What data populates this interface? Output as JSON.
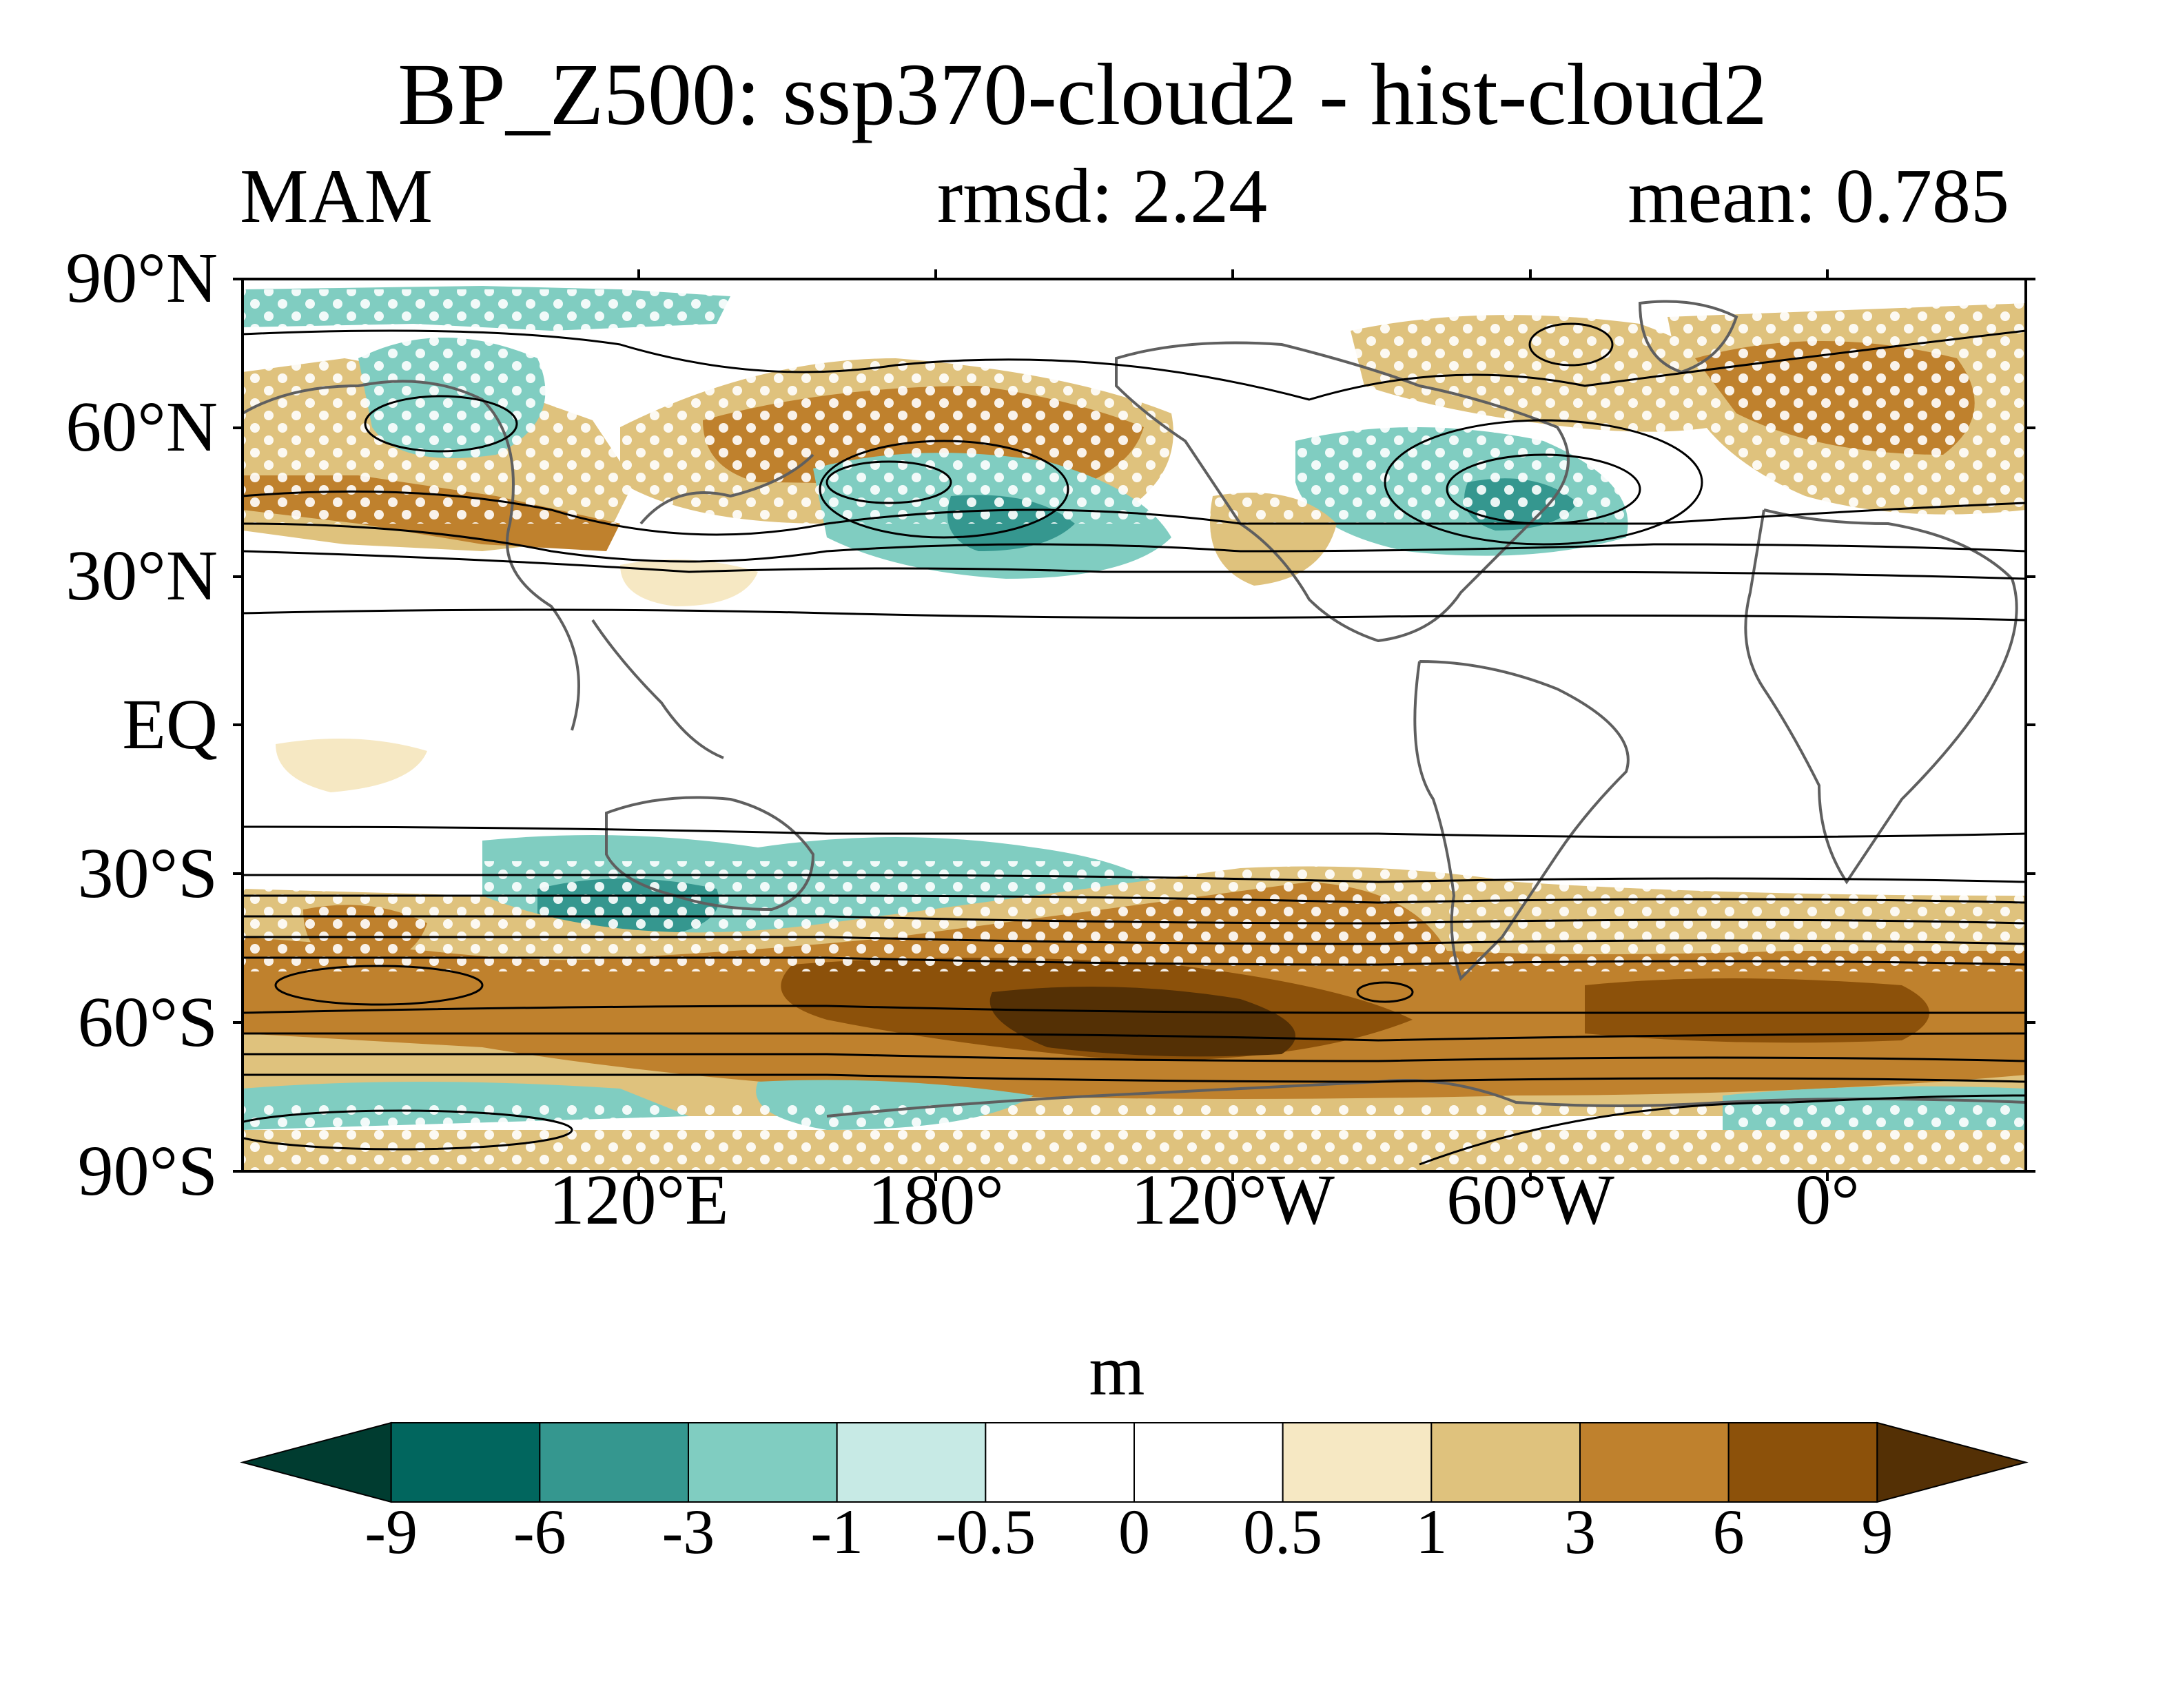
{
  "title": "BP_Z500: ssp370-cloud2 - hist-cloud2",
  "left_label": "MAM",
  "center_label": "rmsd: 2.24",
  "right_label": "mean: 0.785",
  "lat_labels": [
    "90°N",
    "60°N",
    "30°N",
    "EQ",
    "30°S",
    "60°S",
    "90°S"
  ],
  "lon_labels": [
    "120°E",
    "180°",
    "120°W",
    "60°W",
    "0°"
  ],
  "colorbar": {
    "unit": "m",
    "levels": [
      "-9",
      "-6",
      "-3",
      "-1",
      "-0.5",
      "0",
      "0.5",
      "1",
      "3",
      "6",
      "9"
    ],
    "colors": [
      "#003c30",
      "#01665e",
      "#35978f",
      "#80cdc1",
      "#c7eae5",
      "#ffffff",
      "#ffffff",
      "#f6e8c3",
      "#dfc27d",
      "#bf812d",
      "#8c510a",
      "#543005"
    ]
  }
}
